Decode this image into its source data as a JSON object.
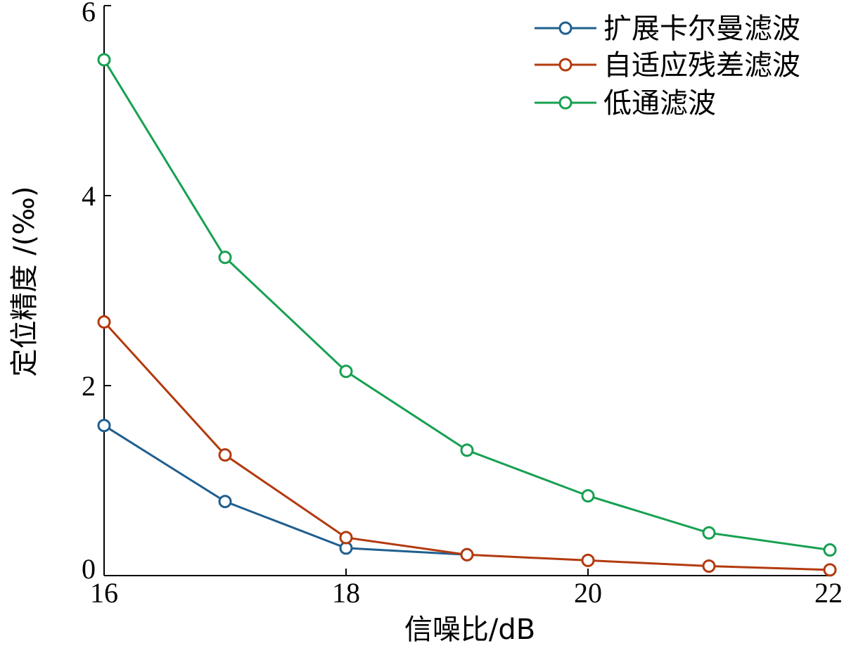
{
  "chart_data": {
    "type": "line",
    "xlabel": "信噪比/dB",
    "ylabel": "定位精度 /(‰)",
    "xlim": [
      16,
      22
    ],
    "ylim": [
      0,
      6
    ],
    "xticks": [
      16,
      18,
      20,
      22
    ],
    "yticks": [
      0,
      2,
      4,
      6
    ],
    "x": [
      16,
      17,
      18,
      19,
      20,
      21,
      22
    ],
    "legend_position": "top-right",
    "grid": false,
    "marker": "open-circle",
    "series": [
      {
        "name": "扩展卡尔曼滤波",
        "color": "#1f5f8f",
        "x": [
          16,
          17,
          18,
          19
        ],
        "values": [
          1.58,
          0.78,
          0.29,
          0.22
        ]
      },
      {
        "name": "自适应残差滤波",
        "color": "#b33a0f",
        "x": [
          16,
          17,
          18,
          19,
          20,
          21,
          22
        ],
        "values": [
          2.67,
          1.27,
          0.4,
          0.22,
          0.16,
          0.1,
          0.06
        ]
      },
      {
        "name": "低通滤波",
        "color": "#18a052",
        "x": [
          16,
          17,
          18,
          19,
          20,
          21,
          22
        ],
        "values": [
          5.43,
          3.35,
          2.15,
          1.32,
          0.84,
          0.45,
          0.27
        ]
      }
    ]
  }
}
